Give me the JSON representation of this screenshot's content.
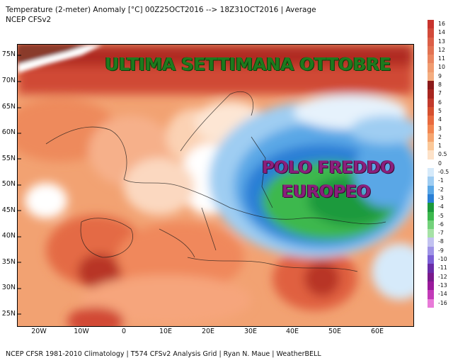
{
  "header": {
    "title_line1": "Temperature (2-meter) Anomaly  [°C] 00Z25OCT2016 --> 18Z31OCT2016 | Average",
    "title_line2": "NCEP CFSv2"
  },
  "footer": {
    "credits": "NCEP CFSR 1981-2010 Climatology | T574 CFSv2 Analysis Grid | Ryan N. Maue | WeatherBELL"
  },
  "overlay": {
    "headline": "ULTIMA SETTIMANA OTTOBRE",
    "cold_pole_line1": "POLO FREDDO",
    "cold_pole_line2": "EUROPEO"
  },
  "map": {
    "lat_labels": [
      "75N",
      "70N",
      "65N",
      "60N",
      "55N",
      "50N",
      "45N",
      "40N",
      "35N",
      "30N",
      "25N"
    ],
    "lon_labels": [
      "20W",
      "10W",
      "0",
      "10E",
      "20E",
      "30E",
      "40E",
      "50E",
      "60E"
    ]
  },
  "colorbar": {
    "labels": [
      "16",
      "14",
      "13",
      "12",
      "11",
      "10",
      "9",
      "8",
      "7",
      "6",
      "5",
      "4",
      "3",
      "2",
      "1",
      "0.5",
      "0",
      "-0.5",
      "-1",
      "-2",
      "-3",
      "-4",
      "-5",
      "-6",
      "-7",
      "-8",
      "-9",
      "-10",
      "-11",
      "-12",
      "-13",
      "-14",
      "-16"
    ],
    "colors": [
      "#c8342e",
      "#d24a3a",
      "#dc5f47",
      "#e27252",
      "#ea8660",
      "#f09c70",
      "#f4ad80",
      "#8b1a1a",
      "#a82620",
      "#c23a2c",
      "#d6502f",
      "#e86a3e",
      "#f28650",
      "#f6a670",
      "#fbc898",
      "#fde2c8",
      "#ffffff",
      "#d6eafa",
      "#9fcdf2",
      "#5aa7e6",
      "#2a7fd6",
      "#1c9a3c",
      "#3cb84e",
      "#72d17a",
      "#a6e2a6",
      "#c2c2f0",
      "#9f94e6",
      "#7b5fd6",
      "#6a2ca8",
      "#7a1a8c",
      "#9a1a9c",
      "#c23ab8",
      "#e87ad8"
    ]
  }
}
